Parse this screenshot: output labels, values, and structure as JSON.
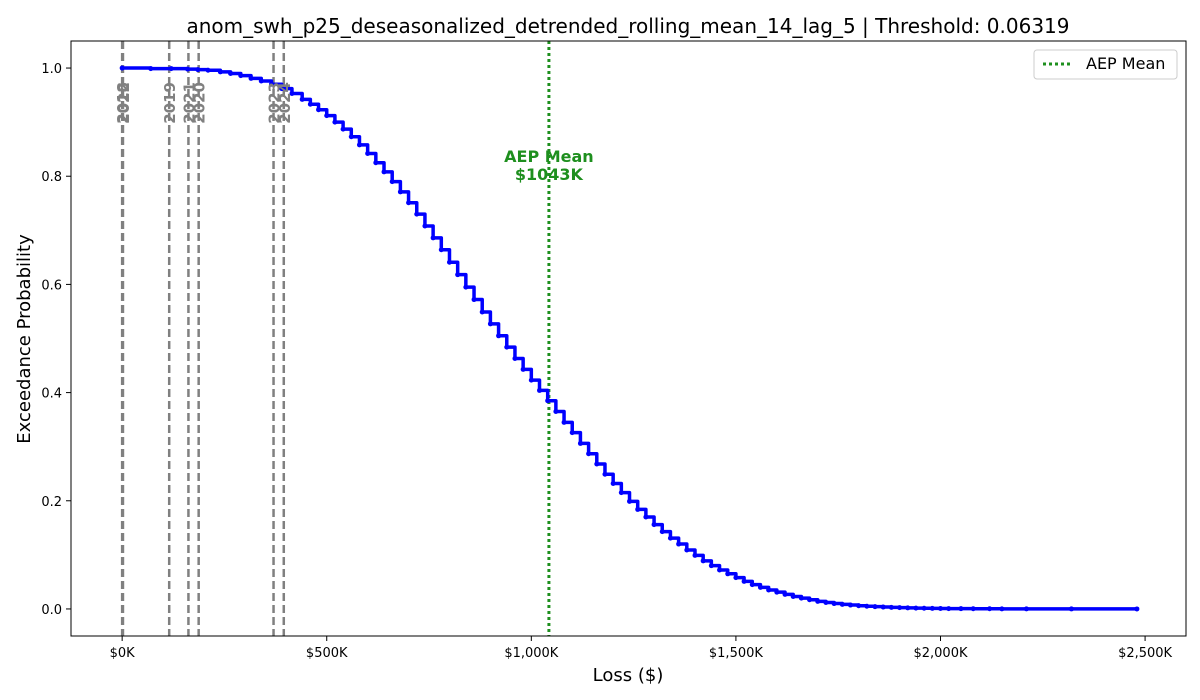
{
  "chart_data": {
    "type": "line",
    "title": "anom_swh_p25_deseasonalized_detrended_rolling_mean_14_lag_5 | Threshold: 0.06319",
    "xlabel": "Loss ($)",
    "ylabel": "Exceedance Probability",
    "xlim": [
      -125000,
      2600000
    ],
    "ylim": [
      -0.05,
      1.05
    ],
    "x_ticks": [
      {
        "value": 0,
        "label": "$0K"
      },
      {
        "value": 500000,
        "label": "$500K"
      },
      {
        "value": 1000000,
        "label": "$1,000K"
      },
      {
        "value": 1500000,
        "label": "$1,500K"
      },
      {
        "value": 2000000,
        "label": "$2,000K"
      },
      {
        "value": 2500000,
        "label": "$2,500K"
      }
    ],
    "y_ticks": [
      {
        "value": 0.0,
        "label": "0.0"
      },
      {
        "value": 0.2,
        "label": "0.2"
      },
      {
        "value": 0.4,
        "label": "0.4"
      },
      {
        "value": 0.6,
        "label": "0.6"
      },
      {
        "value": 0.8,
        "label": "0.8"
      },
      {
        "value": 1.0,
        "label": "1.0"
      }
    ],
    "grid": false,
    "legend": {
      "position": "top-right",
      "entries": [
        "AEP Mean"
      ]
    },
    "series": [
      {
        "name": "",
        "color": "#0000ff",
        "style": "stepped line with point markers",
        "x": [
          0,
          70000,
          120000,
          160000,
          185000,
          210000,
          240000,
          265000,
          290000,
          315000,
          340000,
          365000,
          390000,
          415000,
          440000,
          460000,
          480000,
          500000,
          520000,
          540000,
          560000,
          580000,
          600000,
          620000,
          640000,
          660000,
          680000,
          700000,
          720000,
          740000,
          760000,
          780000,
          800000,
          820000,
          840000,
          860000,
          880000,
          900000,
          920000,
          940000,
          960000,
          980000,
          1000000,
          1020000,
          1040000,
          1060000,
          1080000,
          1100000,
          1120000,
          1140000,
          1160000,
          1180000,
          1200000,
          1220000,
          1240000,
          1260000,
          1280000,
          1300000,
          1320000,
          1340000,
          1360000,
          1380000,
          1400000,
          1420000,
          1440000,
          1460000,
          1480000,
          1500000,
          1520000,
          1540000,
          1560000,
          1580000,
          1600000,
          1620000,
          1640000,
          1660000,
          1680000,
          1700000,
          1720000,
          1740000,
          1760000,
          1780000,
          1800000,
          1820000,
          1840000,
          1860000,
          1880000,
          1900000,
          1920000,
          1940000,
          1960000,
          1980000,
          2000000,
          2020000,
          2050000,
          2080000,
          2120000,
          2150000,
          2210000,
          2320000,
          2480000
        ],
        "y": [
          1.0,
          0.999,
          0.999,
          0.998,
          0.997,
          0.996,
          0.993,
          0.99,
          0.986,
          0.981,
          0.976,
          0.97,
          0.962,
          0.953,
          0.942,
          0.933,
          0.923,
          0.912,
          0.9,
          0.887,
          0.873,
          0.858,
          0.842,
          0.825,
          0.808,
          0.79,
          0.771,
          0.751,
          0.73,
          0.708,
          0.686,
          0.664,
          0.641,
          0.618,
          0.595,
          0.572,
          0.549,
          0.527,
          0.505,
          0.484,
          0.463,
          0.443,
          0.423,
          0.404,
          0.385,
          0.365,
          0.345,
          0.326,
          0.306,
          0.287,
          0.268,
          0.249,
          0.232,
          0.215,
          0.199,
          0.184,
          0.17,
          0.156,
          0.143,
          0.131,
          0.12,
          0.109,
          0.099,
          0.089,
          0.08,
          0.072,
          0.065,
          0.058,
          0.051,
          0.045,
          0.04,
          0.035,
          0.031,
          0.027,
          0.023,
          0.02,
          0.017,
          0.014,
          0.012,
          0.01,
          0.0085,
          0.0072,
          0.006,
          0.005,
          0.0042,
          0.0035,
          0.0029,
          0.0024,
          0.002,
          0.0016,
          0.0013,
          0.001,
          0.0008,
          0.0006,
          0.0005,
          0.0004,
          0.0003,
          0.0002,
          0.0001,
          5e-05,
          0.0
        ]
      }
    ],
    "aep_mean": {
      "value": 1043000,
      "legend_label": "AEP Mean",
      "annotation_line1": "AEP Mean",
      "annotation_line2": "$1043K",
      "color": "#1e8f1e"
    },
    "year_markers": [
      {
        "label": "2018",
        "value": 0
      },
      {
        "label": "2022",
        "value": 2000
      },
      {
        "label": "2019",
        "value": 115000
      },
      {
        "label": "2021",
        "value": 162000
      },
      {
        "label": "2020",
        "value": 187000
      },
      {
        "label": "2023",
        "value": 370000
      },
      {
        "label": "2024",
        "value": 395000
      }
    ],
    "year_marker_color": "#808080"
  }
}
